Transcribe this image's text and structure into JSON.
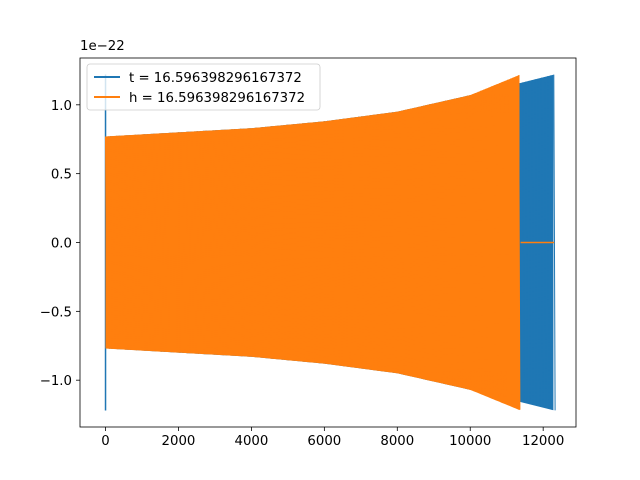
{
  "chart_data": {
    "type": "line",
    "title": "",
    "xlabel": "",
    "ylabel": "",
    "xlim": [
      -700,
      12900
    ],
    "ylim": [
      -1.34e-22,
      1.34e-22
    ],
    "y_offset_label": "1e−22",
    "x_ticks": [
      0,
      2000,
      4000,
      6000,
      8000,
      10000,
      12000
    ],
    "x_tick_labels": [
      "0",
      "2000",
      "4000",
      "6000",
      "8000",
      "10000",
      "12000"
    ],
    "y_ticks": [
      -1.0,
      -0.5,
      0.0,
      0.5,
      1.0
    ],
    "y_tick_labels": [
      "−1.0",
      "−0.5",
      "0.0",
      "0.5",
      "1.0"
    ],
    "grid": false,
    "legend_position": "upper-left",
    "series": [
      {
        "name": "t = 16.596398296167372",
        "color": "#1f77b4",
        "envelope": [
          {
            "x": 0,
            "amp": 1.22
          },
          {
            "x": 50,
            "amp": 0.77
          },
          {
            "x": 2000,
            "amp": 0.8
          },
          {
            "x": 4000,
            "amp": 0.83
          },
          {
            "x": 6000,
            "amp": 0.88
          },
          {
            "x": 8000,
            "amp": 0.95
          },
          {
            "x": 10000,
            "amp": 1.07
          },
          {
            "x": 11400,
            "amp": 1.16
          },
          {
            "x": 12300,
            "amp": 1.22
          }
        ],
        "end_x": 12300
      },
      {
        "name": "h = 16.596398296167372",
        "color": "#ff7f0e",
        "envelope": [
          {
            "x": 0,
            "amp": 0.77
          },
          {
            "x": 2000,
            "amp": 0.8
          },
          {
            "x": 4000,
            "amp": 0.83
          },
          {
            "x": 6000,
            "amp": 0.88
          },
          {
            "x": 8000,
            "amp": 0.95
          },
          {
            "x": 10000,
            "amp": 1.07
          },
          {
            "x": 11380,
            "amp": 1.22
          }
        ],
        "end_x": 11380,
        "flat_after": 12300
      }
    ]
  }
}
